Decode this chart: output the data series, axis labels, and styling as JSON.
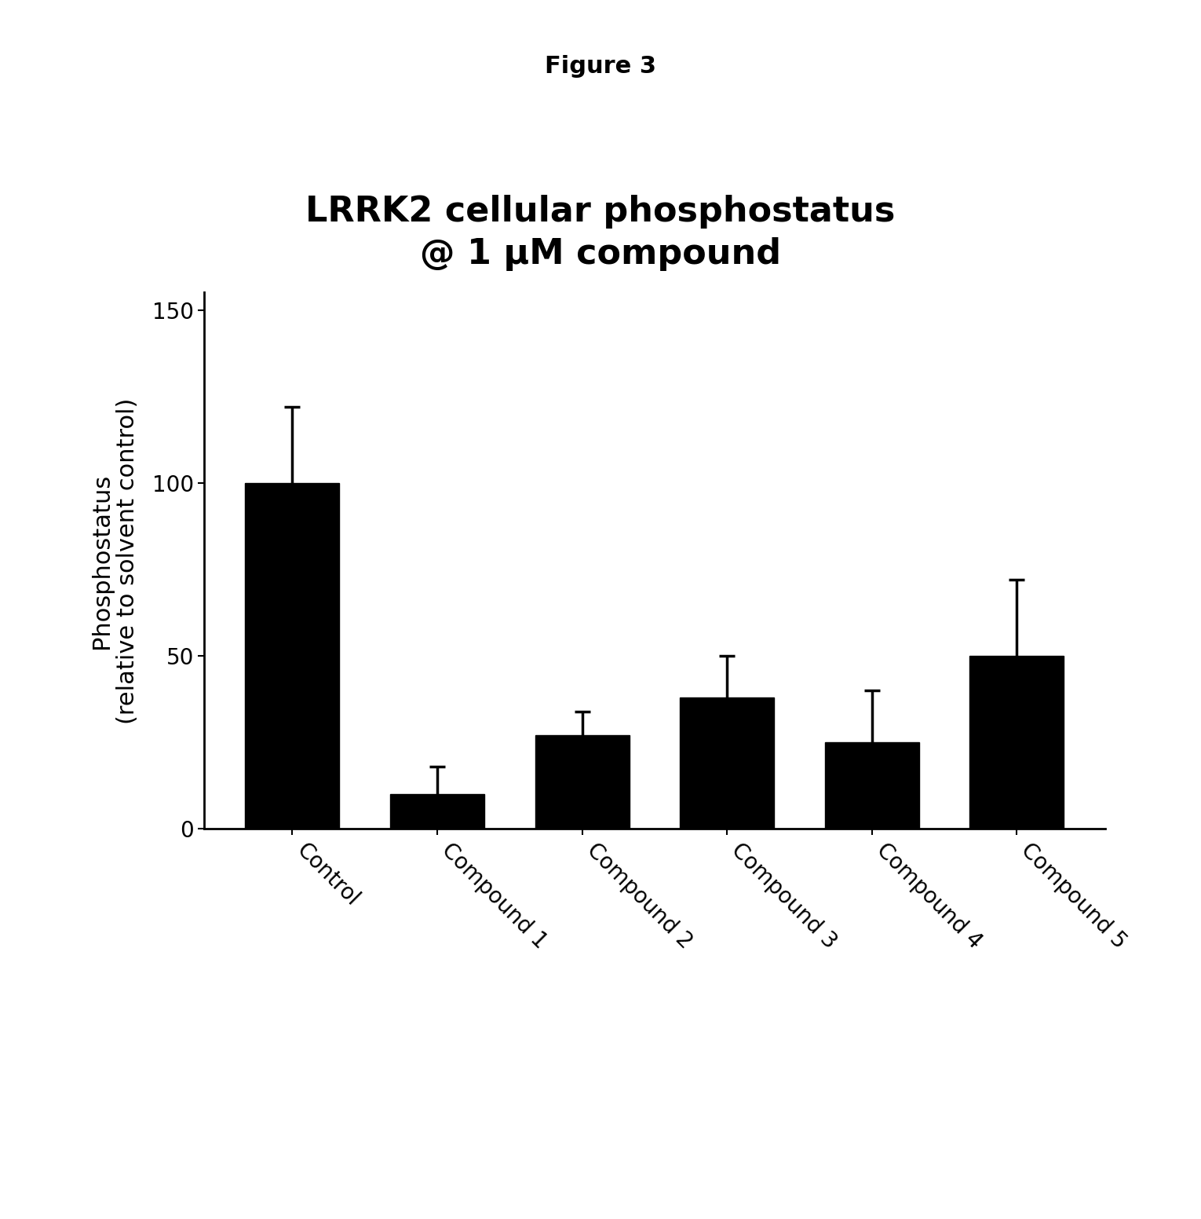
{
  "figure_title": "Figure 3",
  "chart_title": "LRRK2 cellular phosphostatus\n@ 1 μM compound",
  "ylabel": "Phosphostatus\n(relative to solvent control)",
  "categories": [
    "Control",
    "Compound 1",
    "Compound 2",
    "Compound 3",
    "Compound 4",
    "Compound 5"
  ],
  "values": [
    100,
    10,
    27,
    38,
    25,
    50
  ],
  "errors": [
    22,
    8,
    7,
    12,
    15,
    22
  ],
  "bar_color": "#000000",
  "background_color": "#ffffff",
  "ylim": [
    0,
    155
  ],
  "yticks": [
    0,
    50,
    100,
    150
  ],
  "bar_width": 0.65,
  "figure_title_fontsize": 22,
  "chart_title_fontsize": 32,
  "ylabel_fontsize": 22,
  "tick_fontsize": 20,
  "xtick_rotation": -45
}
